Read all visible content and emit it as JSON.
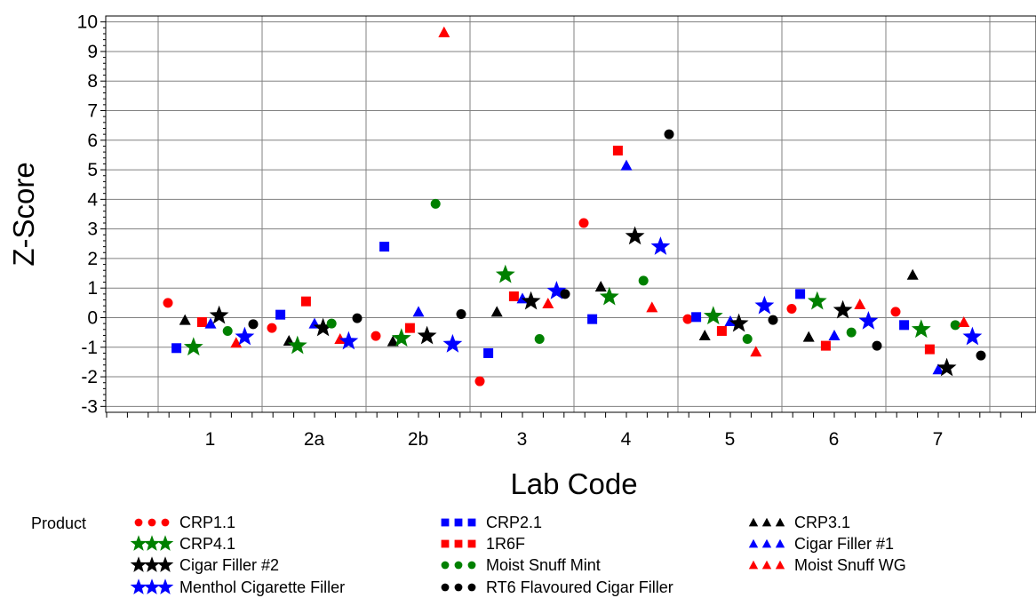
{
  "chart_data": {
    "type": "scatter",
    "xlabel": "Lab Code",
    "ylabel": "Z-Score",
    "ylim": [
      -3.2,
      10.2
    ],
    "yticks": [
      -3,
      -2,
      -1,
      0,
      1,
      2,
      3,
      4,
      5,
      6,
      7,
      8,
      9,
      10
    ],
    "categories": [
      "1",
      "2a",
      "2b",
      "3",
      "4",
      "5",
      "6",
      "7"
    ],
    "grid": true,
    "legend_title": "Product",
    "legend_placement": "bottom",
    "series": [
      {
        "name": "CRP1.1",
        "color": "#ff0000",
        "marker": "circle",
        "values": [
          0.5,
          -0.35,
          -0.62,
          -2.15,
          3.2,
          -0.05,
          0.3,
          0.2
        ]
      },
      {
        "name": "CRP2.1",
        "color": "#0000ff",
        "marker": "square",
        "values": [
          -1.03,
          0.1,
          2.4,
          -1.2,
          -0.05,
          0.02,
          0.8,
          -0.25
        ]
      },
      {
        "name": "CRP3.1",
        "color": "#000000",
        "marker": "triangle",
        "values": [
          -0.08,
          -0.78,
          -0.8,
          0.2,
          1.05,
          -0.6,
          -0.65,
          1.45
        ]
      },
      {
        "name": "CRP4.1",
        "color": "#008000",
        "marker": "star",
        "values": [
          -1.0,
          -0.95,
          -0.7,
          1.45,
          0.7,
          0.05,
          0.55,
          -0.4
        ]
      },
      {
        "name": "1R6F",
        "color": "#ff0000",
        "marker": "square",
        "values": [
          -0.15,
          0.55,
          -0.35,
          0.72,
          5.65,
          -0.45,
          -0.95,
          -1.07
        ]
      },
      {
        "name": "Cigar Filler #1",
        "color": "#0000ff",
        "marker": "triangle",
        "values": [
          -0.2,
          -0.2,
          0.2,
          0.65,
          5.15,
          -0.12,
          -0.6,
          -1.75
        ]
      },
      {
        "name": "Cigar Filler #2",
        "color": "#000000",
        "marker": "star",
        "values": [
          0.07,
          -0.35,
          -0.62,
          0.55,
          2.75,
          -0.2,
          0.25,
          -1.7
        ]
      },
      {
        "name": "Moist Snuff Mint",
        "color": "#008000",
        "marker": "circle",
        "values": [
          -0.45,
          -0.2,
          3.85,
          -0.72,
          1.25,
          -0.72,
          -0.5,
          -0.25
        ]
      },
      {
        "name": "Moist Snuff WG",
        "color": "#ff0000",
        "marker": "triangle",
        "values": [
          -0.85,
          -0.72,
          9.65,
          0.48,
          0.35,
          -1.15,
          0.45,
          -0.15
        ]
      },
      {
        "name": "Menthol Cigarette Filler",
        "color": "#0000ff",
        "marker": "star",
        "values": [
          -0.65,
          -0.8,
          -0.9,
          0.9,
          2.4,
          0.4,
          -0.12,
          -0.65
        ]
      },
      {
        "name": "RT6 Flavoured Cigar Filler",
        "color": "#000000",
        "marker": "circle",
        "values": [
          -0.22,
          -0.02,
          0.12,
          0.8,
          6.2,
          -0.08,
          -0.95,
          -1.28
        ]
      }
    ]
  }
}
